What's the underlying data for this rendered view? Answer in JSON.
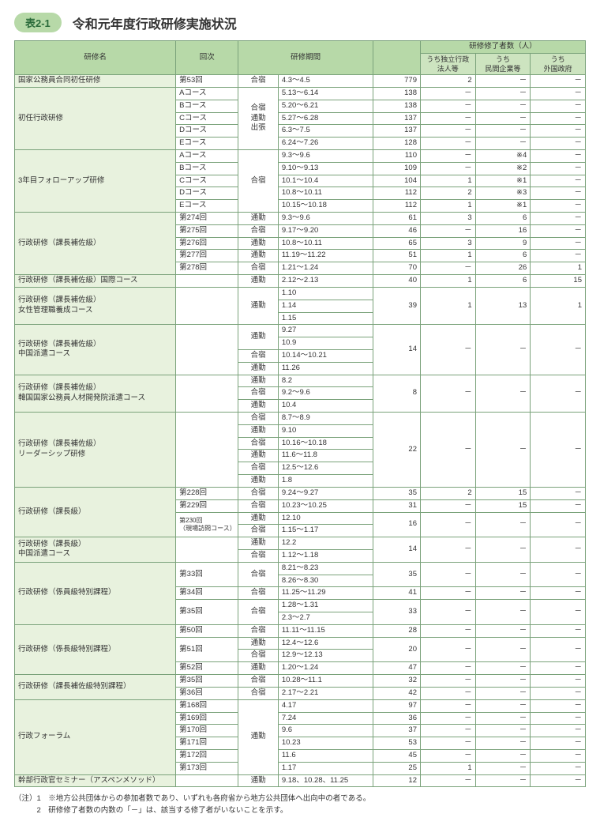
{
  "badgeText": "表2-1",
  "titleText": "令和元年度行政研修実施状況",
  "header": {
    "col_name": "研修名",
    "col_kai": "回次",
    "col_period": "研修期間",
    "col_graduates": "研修修了者数（人）",
    "sub_u1": "うち独立行政\n法人等",
    "sub_u2": "うち\n民間企業等",
    "sub_u3": "うち\n外国政府"
  },
  "colors": {
    "header_bg": "#b7d9a8",
    "subheader_bg": "#cde4c0",
    "name_bg": "#e8f2de",
    "border": "#7aa27a"
  },
  "rows": [
    {
      "name": "国家公務員合同初任研修",
      "nameRows": 1,
      "kai": "第53回",
      "kaiRows": 1,
      "form": "合宿",
      "formRows": 1,
      "period": "4.3～4.5",
      "total": "779",
      "totalRows": 1,
      "u1": "2",
      "u2": "－",
      "u3": "－",
      "dashed": false
    },
    {
      "name": "初任行政研修",
      "nameRows": 5,
      "kai": "Aコース",
      "kaiRows": 1,
      "form": "合宿\n通勤\n出張",
      "formRows": 5,
      "period": "5.13～6.14",
      "total": "138",
      "totalRows": 1,
      "u1": "－",
      "u2": "－",
      "u3": "－",
      "dashed": true
    },
    {
      "kai": "Bコース",
      "kaiRows": 1,
      "period": "5.20～6.21",
      "total": "138",
      "totalRows": 1,
      "u1": "－",
      "u2": "－",
      "u3": "－",
      "dashed": true
    },
    {
      "kai": "Cコース",
      "kaiRows": 1,
      "period": "5.27～6.28",
      "total": "137",
      "totalRows": 1,
      "u1": "－",
      "u2": "－",
      "u3": "－",
      "dashed": true
    },
    {
      "kai": "Dコース",
      "kaiRows": 1,
      "period": "6.3～7.5",
      "total": "137",
      "totalRows": 1,
      "u1": "－",
      "u2": "－",
      "u3": "－",
      "dashed": true
    },
    {
      "kai": "Eコース",
      "kaiRows": 1,
      "period": "6.24～7.26",
      "total": "128",
      "totalRows": 1,
      "u1": "－",
      "u2": "－",
      "u3": "－",
      "dashed": false
    },
    {
      "name": "3年目フォローアップ研修",
      "nameRows": 5,
      "kai": "Aコース",
      "kaiRows": 1,
      "form": "合宿",
      "formRows": 5,
      "period": "9.3～9.6",
      "total": "110",
      "totalRows": 1,
      "u1": "－",
      "u2": "※4",
      "u3": "－",
      "dashed": true
    },
    {
      "kai": "Bコース",
      "kaiRows": 1,
      "period": "9.10～9.13",
      "total": "109",
      "totalRows": 1,
      "u1": "－",
      "u2": "※2",
      "u3": "－",
      "dashed": true
    },
    {
      "kai": "Cコース",
      "kaiRows": 1,
      "period": "10.1～10.4",
      "total": "104",
      "totalRows": 1,
      "u1": "1",
      "u2": "※1",
      "u3": "－",
      "dashed": true
    },
    {
      "kai": "Dコース",
      "kaiRows": 1,
      "period": "10.8～10.11",
      "total": "112",
      "totalRows": 1,
      "u1": "2",
      "u2": "※3",
      "u3": "－",
      "dashed": true
    },
    {
      "kai": "Eコース",
      "kaiRows": 1,
      "period": "10.15～10.18",
      "total": "112",
      "totalRows": 1,
      "u1": "1",
      "u2": "※1",
      "u3": "－",
      "dashed": false
    },
    {
      "name": "行政研修（課長補佐級）",
      "nameRows": 5,
      "kai": "第274回",
      "kaiRows": 1,
      "form": "通勤",
      "formRows": 1,
      "period": "9.3～9.6",
      "total": "61",
      "totalRows": 1,
      "u1": "3",
      "u2": "6",
      "u3": "－",
      "dashed": true
    },
    {
      "kai": "第275回",
      "kaiRows": 1,
      "form": "合宿",
      "formRows": 1,
      "period": "9.17～9.20",
      "total": "46",
      "totalRows": 1,
      "u1": "－",
      "u2": "16",
      "u3": "－",
      "dashed": true
    },
    {
      "kai": "第276回",
      "kaiRows": 1,
      "form": "通勤",
      "formRows": 1,
      "period": "10.8～10.11",
      "total": "65",
      "totalRows": 1,
      "u1": "3",
      "u2": "9",
      "u3": "－",
      "dashed": true
    },
    {
      "kai": "第277回",
      "kaiRows": 1,
      "form": "通勤",
      "formRows": 1,
      "period": "11.19～11.22",
      "total": "51",
      "totalRows": 1,
      "u1": "1",
      "u2": "6",
      "u3": "－",
      "dashed": true
    },
    {
      "kai": "第278回",
      "kaiRows": 1,
      "form": "合宿",
      "formRows": 1,
      "period": "1.21～1.24",
      "total": "70",
      "totalRows": 1,
      "u1": "－",
      "u2": "26",
      "u3": "1",
      "dashed": false
    },
    {
      "name": "行政研修（課長補佐級）国際コース",
      "nameRows": 1,
      "kai": "",
      "kaiRows": 1,
      "form": "通勤",
      "formRows": 1,
      "period": "2.12～2.13",
      "total": "40",
      "totalRows": 1,
      "u1": "1",
      "u2": "6",
      "u3": "15",
      "dashed": false
    },
    {
      "name": "行政研修（課長補佐級）\n女性管理職養成コース",
      "nameRows": 3,
      "kai": "",
      "kaiRows": 3,
      "form": "通勤",
      "formRows": 3,
      "period": "1.10",
      "total": "39",
      "totalRows": 3,
      "u1": "1",
      "u1Rows": 3,
      "u2": "13",
      "u2Rows": 3,
      "u3": "1",
      "u3Rows": 3,
      "dashed": true,
      "dashedSub": "period"
    },
    {
      "period": "1.14",
      "dashed": true,
      "dashedSub": "period"
    },
    {
      "period": "1.15",
      "dashed": false
    },
    {
      "name": "行政研修（課長補佐級）\n中国派遣コース",
      "nameRows": 4,
      "kai": "",
      "kaiRows": 4,
      "form": "通勤",
      "formRows": 2,
      "period": "9.27",
      "total": "14",
      "totalRows": 4,
      "u1": "－",
      "u1Rows": 4,
      "u2": "－",
      "u2Rows": 4,
      "u3": "－",
      "u3Rows": 4,
      "dashed": true,
      "dashedSub": "period"
    },
    {
      "period": "10.9",
      "dashed": true,
      "dashedSub": "form-period"
    },
    {
      "form": "合宿",
      "formRows": 1,
      "period": "10.14～10.21",
      "dashed": true,
      "dashedSub": "form-period"
    },
    {
      "form": "通勤",
      "formRows": 1,
      "period": "11.26",
      "dashed": false
    },
    {
      "name": "行政研修（課長補佐級）\n韓国国家公務員人材開発院派遣コース",
      "nameRows": 3,
      "kai": "",
      "kaiRows": 3,
      "form": "通勤",
      "formRows": 1,
      "period": "8.2",
      "total": "8",
      "totalRows": 3,
      "u1": "－",
      "u1Rows": 3,
      "u2": "－",
      "u2Rows": 3,
      "u3": "－",
      "u3Rows": 3,
      "dashed": true,
      "dashedSub": "form-period"
    },
    {
      "form": "合宿",
      "formRows": 1,
      "period": "9.2～9.6",
      "dashed": true,
      "dashedSub": "form-period"
    },
    {
      "form": "通勤",
      "formRows": 1,
      "period": "10.4",
      "dashed": false
    },
    {
      "name": "行政研修（課長補佐級）\nリーダーシップ研修",
      "nameRows": 6,
      "kai": "",
      "kaiRows": 6,
      "form": "合宿",
      "formRows": 1,
      "period": "8.7～8.9",
      "total": "22",
      "totalRows": 6,
      "u1": "－",
      "u1Rows": 6,
      "u2": "－",
      "u2Rows": 6,
      "u3": "－",
      "u3Rows": 6,
      "dashed": true,
      "dashedSub": "form-period"
    },
    {
      "form": "通勤",
      "formRows": 1,
      "period": "9.10",
      "dashed": true,
      "dashedSub": "form-period"
    },
    {
      "form": "合宿",
      "formRows": 1,
      "period": "10.16～10.18",
      "dashed": true,
      "dashedSub": "form-period"
    },
    {
      "form": "通勤",
      "formRows": 1,
      "period": "11.6～11.8",
      "dashed": true,
      "dashedSub": "form-period"
    },
    {
      "form": "合宿",
      "formRows": 1,
      "period": "12.5～12.6",
      "dashed": true,
      "dashedSub": "form-period"
    },
    {
      "form": "通勤",
      "formRows": 1,
      "period": "1.8",
      "dashed": false
    },
    {
      "name": "行政研修（課長級）",
      "nameRows": 4,
      "kai": "第228回",
      "kaiRows": 1,
      "form": "合宿",
      "formRows": 1,
      "period": "9.24～9.27",
      "total": "35",
      "totalRows": 1,
      "u1": "2",
      "u2": "15",
      "u3": "－",
      "dashed": true
    },
    {
      "kai": "第229回",
      "kaiRows": 1,
      "form": "合宿",
      "formRows": 1,
      "period": "10.23～10.25",
      "total": "31",
      "totalRows": 1,
      "u1": "－",
      "u2": "15",
      "u3": "－",
      "dashed": true
    },
    {
      "kai": "第230回\n（現場訪問コース）",
      "kaiRows": 2,
      "form": "通勤",
      "formRows": 1,
      "period": "12.10",
      "total": "16",
      "totalRows": 2,
      "u1": "－",
      "u1Rows": 2,
      "u2": "－",
      "u2Rows": 2,
      "u3": "－",
      "u3Rows": 2,
      "dashed": true,
      "dashedSub": "form-period",
      "kaiSmall": true
    },
    {
      "form": "合宿",
      "formRows": 1,
      "period": "1.15～1.17",
      "dashed": false
    },
    {
      "name": "行政研修（課長級）\n中国派遣コース",
      "nameRows": 2,
      "kai": "",
      "kaiRows": 2,
      "form": "通勤",
      "formRows": 1,
      "period": "12.2",
      "total": "14",
      "totalRows": 2,
      "u1": "－",
      "u1Rows": 2,
      "u2": "－",
      "u2Rows": 2,
      "u3": "－",
      "u3Rows": 2,
      "dashed": true,
      "dashedSub": "form-period"
    },
    {
      "form": "合宿",
      "formRows": 1,
      "period": "1.12～1.18",
      "dashed": false
    },
    {
      "name": "行政研修（係員級特別課程）",
      "nameRows": 5,
      "kai": "第33回",
      "kaiRows": 2,
      "form": "合宿",
      "formRows": 2,
      "period": "8.21～8.23",
      "total": "35",
      "totalRows": 2,
      "u1": "－",
      "u1Rows": 2,
      "u2": "－",
      "u2Rows": 2,
      "u3": "－",
      "u3Rows": 2,
      "dashed": true,
      "dashedSub": "period"
    },
    {
      "period": "8.26～8.30",
      "dashed": true,
      "dashedSub": "all"
    },
    {
      "kai": "第34回",
      "kaiRows": 1,
      "form": "合宿",
      "formRows": 1,
      "period": "11.25～11.29",
      "total": "41",
      "totalRows": 1,
      "u1": "－",
      "u2": "－",
      "u3": "－",
      "dashed": true
    },
    {
      "kai": "第35回",
      "kaiRows": 2,
      "form": "合宿",
      "formRows": 2,
      "period": "1.28～1.31",
      "total": "33",
      "totalRows": 2,
      "u1": "－",
      "u1Rows": 2,
      "u2": "－",
      "u2Rows": 2,
      "u3": "－",
      "u3Rows": 2,
      "dashed": true,
      "dashedSub": "period"
    },
    {
      "period": "2.3～2.7",
      "dashed": false
    },
    {
      "name": "行政研修（係長級特別課程）",
      "nameRows": 4,
      "kai": "第50回",
      "kaiRows": 1,
      "form": "合宿",
      "formRows": 1,
      "period": "11.11～11.15",
      "total": "28",
      "totalRows": 1,
      "u1": "－",
      "u2": "－",
      "u3": "－",
      "dashed": true
    },
    {
      "kai": "第51回",
      "kaiRows": 2,
      "form": "通勤",
      "formRows": 1,
      "period": "12.4～12.6",
      "total": "20",
      "totalRows": 2,
      "u1": "－",
      "u1Rows": 2,
      "u2": "－",
      "u2Rows": 2,
      "u3": "－",
      "u3Rows": 2,
      "dashed": true,
      "dashedSub": "form-period"
    },
    {
      "form": "合宿",
      "formRows": 1,
      "period": "12.9～12.13",
      "dashed": true,
      "dashedSub": "all"
    },
    {
      "kai": "第52回",
      "kaiRows": 1,
      "form": "通勤",
      "formRows": 1,
      "period": "1.20～1.24",
      "total": "47",
      "totalRows": 1,
      "u1": "－",
      "u2": "－",
      "u3": "－",
      "dashed": false
    },
    {
      "name": "行政研修（課長補佐級特別課程）",
      "nameRows": 2,
      "kai": "第35回",
      "kaiRows": 1,
      "form": "合宿",
      "formRows": 1,
      "period": "10.28～11.1",
      "total": "32",
      "totalRows": 1,
      "u1": "－",
      "u2": "－",
      "u3": "－",
      "dashed": true
    },
    {
      "kai": "第36回",
      "kaiRows": 1,
      "form": "合宿",
      "formRows": 1,
      "period": "2.17～2.21",
      "total": "42",
      "totalRows": 1,
      "u1": "－",
      "u2": "－",
      "u3": "－",
      "dashed": false
    },
    {
      "name": "行政フォーラム",
      "nameRows": 6,
      "kai": "第168回",
      "kaiRows": 1,
      "form": "通勤",
      "formRows": 6,
      "period": "4.17",
      "total": "97",
      "totalRows": 1,
      "u1": "－",
      "u2": "－",
      "u3": "－",
      "dashed": true
    },
    {
      "kai": "第169回",
      "kaiRows": 1,
      "period": "7.24",
      "total": "36",
      "totalRows": 1,
      "u1": "－",
      "u2": "－",
      "u3": "－",
      "dashed": true
    },
    {
      "kai": "第170回",
      "kaiRows": 1,
      "period": "9.6",
      "total": "37",
      "totalRows": 1,
      "u1": "－",
      "u2": "－",
      "u3": "－",
      "dashed": true
    },
    {
      "kai": "第171回",
      "kaiRows": 1,
      "period": "10.23",
      "total": "53",
      "totalRows": 1,
      "u1": "－",
      "u2": "－",
      "u3": "－",
      "dashed": true
    },
    {
      "kai": "第172回",
      "kaiRows": 1,
      "period": "11.6",
      "total": "45",
      "totalRows": 1,
      "u1": "－",
      "u2": "－",
      "u3": "－",
      "dashed": true
    },
    {
      "kai": "第173回",
      "kaiRows": 1,
      "period": "1.17",
      "total": "25",
      "totalRows": 1,
      "u1": "1",
      "u2": "－",
      "u3": "－",
      "dashed": false
    },
    {
      "name": "幹部行政官セミナー（アスペンメソッド）",
      "nameRows": 1,
      "kai": "",
      "kaiRows": 1,
      "form": "通勤",
      "formRows": 1,
      "period": "9.18、10.28、11.25",
      "total": "12",
      "totalRows": 1,
      "u1": "－",
      "u2": "－",
      "u3": "－",
      "dashed": false
    }
  ],
  "notes": {
    "label": "（注）",
    "n1": "1　※地方公共団体からの参加者数であり、いずれも各府省から地方公共団体へ出向中の者である。",
    "n2": "2　研修修了者数の内数の「－」は、該当する修了者がいないことを示す。"
  }
}
